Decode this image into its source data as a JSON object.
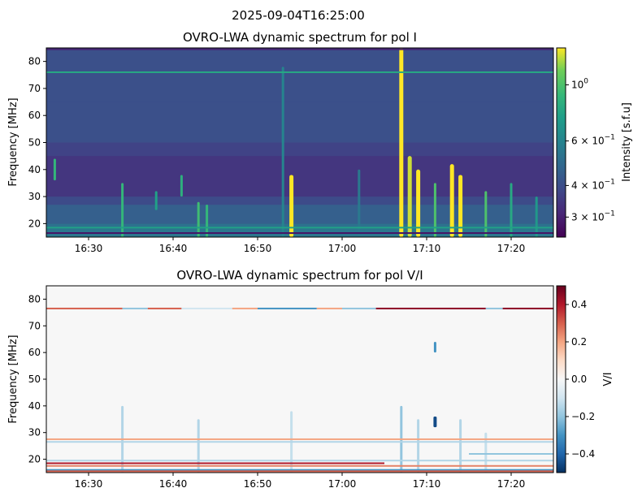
{
  "figure": {
    "suptitle": "2025-09-04T16:25:00"
  },
  "chart_data": [
    {
      "type": "heatmap",
      "title": "OVRO-LWA dynamic spectrum for pol I",
      "xlabel": "",
      "ylabel": "Frequency [MHz]",
      "x_range": [
        "16:25",
        "17:25"
      ],
      "x_ticks": [
        "16:30",
        "16:40",
        "16:50",
        "17:00",
        "17:10",
        "17:20"
      ],
      "ylim": [
        15,
        85
      ],
      "y_ticks": [
        20,
        30,
        40,
        50,
        60,
        70,
        80
      ],
      "colormap": "viridis",
      "colorbar": {
        "label": "Intensity [s.f.u]",
        "scale": "log",
        "range": [
          0.25,
          1.4
        ],
        "ticks": [
          {
            "value": 1.0,
            "base": "10",
            "exp": "0"
          },
          {
            "value": 0.6,
            "base": "6 × 10",
            "exp": "−1"
          },
          {
            "value": 0.4,
            "base": "4 × 10",
            "exp": "−1"
          },
          {
            "value": 0.3,
            "base": "3 × 10",
            "exp": "−1"
          }
        ]
      },
      "background_level": 0.36,
      "background_profile": [
        {
          "f": 15,
          "v": 0.5
        },
        {
          "f": 18,
          "v": 0.58
        },
        {
          "f": 20,
          "v": 0.46
        },
        {
          "f": 27,
          "v": 0.44
        },
        {
          "f": 30,
          "v": 0.34
        },
        {
          "f": 45,
          "v": 0.34
        },
        {
          "f": 50,
          "v": 0.4
        },
        {
          "f": 65,
          "v": 0.41
        },
        {
          "f": 85,
          "v": 0.4
        }
      ],
      "horizontal_lines": [
        {
          "freq": 76,
          "value": 0.8
        },
        {
          "freq": 18.5,
          "value": 0.75
        },
        {
          "freq": 16.5,
          "value": 0.28
        },
        {
          "freq": 84.5,
          "value": 0.3
        }
      ],
      "bursts": [
        {
          "time": "16:26",
          "f_low": 36,
          "f_high": 44,
          "value": 0.9
        },
        {
          "time": "16:34",
          "f_low": 15,
          "f_high": 35,
          "value": 0.9
        },
        {
          "time": "16:38",
          "f_low": 25,
          "f_high": 32,
          "value": 0.75
        },
        {
          "time": "16:41",
          "f_low": 30,
          "f_high": 38,
          "value": 0.85
        },
        {
          "time": "16:43",
          "f_low": 15,
          "f_high": 28,
          "value": 0.95
        },
        {
          "time": "16:44",
          "f_low": 15,
          "f_high": 27,
          "value": 0.9
        },
        {
          "time": "16:53",
          "f_low": 15,
          "f_high": 78,
          "value": 0.6
        },
        {
          "time": "16:54",
          "f_low": 15,
          "f_high": 38,
          "value": 1.4
        },
        {
          "time": "17:02",
          "f_low": 15,
          "f_high": 40,
          "value": 0.55
        },
        {
          "time": "17:07",
          "f_low": 15,
          "f_high": 85,
          "value": 1.4
        },
        {
          "time": "17:08",
          "f_low": 15,
          "f_high": 45,
          "value": 1.3
        },
        {
          "time": "17:09",
          "f_low": 15,
          "f_high": 40,
          "value": 1.4
        },
        {
          "time": "17:11",
          "f_low": 15,
          "f_high": 35,
          "value": 1.0
        },
        {
          "time": "17:13",
          "f_low": 15,
          "f_high": 42,
          "value": 1.4
        },
        {
          "time": "17:14",
          "f_low": 15,
          "f_high": 38,
          "value": 1.4
        },
        {
          "time": "17:17",
          "f_low": 15,
          "f_high": 32,
          "value": 1.0
        },
        {
          "time": "17:20",
          "f_low": 15,
          "f_high": 35,
          "value": 0.8
        },
        {
          "time": "17:23",
          "f_low": 15,
          "f_high": 30,
          "value": 0.7
        }
      ]
    },
    {
      "type": "heatmap",
      "title": "OVRO-LWA dynamic spectrum for pol V/I",
      "xlabel": "",
      "ylabel": "Frequency [MHz]",
      "x_range": [
        "16:25",
        "17:25"
      ],
      "x_ticks": [
        "16:30",
        "16:40",
        "16:50",
        "17:00",
        "17:10",
        "17:20"
      ],
      "ylim": [
        15,
        85
      ],
      "y_ticks": [
        20,
        30,
        40,
        50,
        60,
        70,
        80
      ],
      "colormap": "RdBu_r",
      "colorbar": {
        "label": "V/I",
        "scale": "linear",
        "range": [
          -0.5,
          0.5
        ],
        "ticks": [
          {
            "value": 0.4,
            "text": "0.4"
          },
          {
            "value": 0.2,
            "text": "0.2"
          },
          {
            "value": 0.0,
            "text": "0.0"
          },
          {
            "value": -0.2,
            "text": "−0.2"
          },
          {
            "value": -0.4,
            "text": "−0.4"
          }
        ]
      },
      "background_level": 0.0,
      "horizontal_lines": [
        {
          "freq": 76.5,
          "t_start": "16:25",
          "t_end": "16:34",
          "value": 0.3
        },
        {
          "freq": 76.5,
          "t_start": "16:34",
          "t_end": "16:37",
          "value": -0.2
        },
        {
          "freq": 76.5,
          "t_start": "16:37",
          "t_end": "16:41",
          "value": 0.3
        },
        {
          "freq": 76.5,
          "t_start": "16:41",
          "t_end": "16:47",
          "value": -0.1
        },
        {
          "freq": 76.5,
          "t_start": "16:47",
          "t_end": "16:50",
          "value": 0.2
        },
        {
          "freq": 76.5,
          "t_start": "16:50",
          "t_end": "16:57",
          "value": -0.3
        },
        {
          "freq": 76.5,
          "t_start": "16:57",
          "t_end": "17:00",
          "value": 0.2
        },
        {
          "freq": 76.5,
          "t_start": "17:00",
          "t_end": "17:04",
          "value": -0.2
        },
        {
          "freq": 76.5,
          "t_start": "17:04",
          "t_end": "17:17",
          "value": 0.45
        },
        {
          "freq": 76.5,
          "t_start": "17:17",
          "t_end": "17:19",
          "value": -0.2
        },
        {
          "freq": 76.5,
          "t_start": "17:19",
          "t_end": "17:25",
          "value": 0.45
        },
        {
          "freq": 27.5,
          "t_start": "16:25",
          "t_end": "17:25",
          "value": 0.2
        },
        {
          "freq": 26.5,
          "t_start": "16:25",
          "t_end": "17:25",
          "value": -0.15
        },
        {
          "freq": 19.5,
          "t_start": "16:25",
          "t_end": "17:25",
          "value": -0.15
        },
        {
          "freq": 18.5,
          "t_start": "16:25",
          "t_end": "17:05",
          "value": 0.4
        },
        {
          "freq": 17.5,
          "t_start": "16:25",
          "t_end": "17:25",
          "value": 0.25
        },
        {
          "freq": 16.0,
          "t_start": "16:25",
          "t_end": "17:25",
          "value": -0.3
        },
        {
          "freq": 15.5,
          "t_start": "16:25",
          "t_end": "17:25",
          "value": 0.3
        },
        {
          "freq": 22.0,
          "t_start": "17:15",
          "t_end": "17:25",
          "value": -0.2
        }
      ],
      "bursts": [
        {
          "time": "16:34",
          "f_low": 15,
          "f_high": 40,
          "value": -0.15
        },
        {
          "time": "16:43",
          "f_low": 15,
          "f_high": 35,
          "value": -0.15
        },
        {
          "time": "16:54",
          "f_low": 15,
          "f_high": 38,
          "value": -0.12
        },
        {
          "time": "17:07",
          "f_low": 15,
          "f_high": 40,
          "value": -0.2
        },
        {
          "time": "17:09",
          "f_low": 15,
          "f_high": 35,
          "value": -0.15
        },
        {
          "time": "17:11",
          "f_low": 32,
          "f_high": 36,
          "value": -0.45
        },
        {
          "time": "17:11",
          "f_low": 60,
          "f_high": 64,
          "value": -0.3
        },
        {
          "time": "17:14",
          "f_low": 15,
          "f_high": 35,
          "value": -0.15
        },
        {
          "time": "17:17",
          "f_low": 15,
          "f_high": 30,
          "value": -0.12
        }
      ]
    }
  ]
}
